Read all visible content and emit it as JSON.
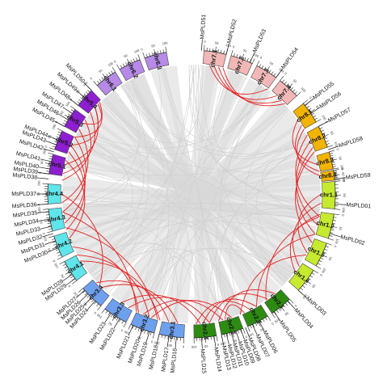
{
  "chromosomes": [
    {
      "name": "chr1.1",
      "color": "#c6ea2f"
    },
    {
      "name": "chr1.2",
      "color": "#c6ea2f"
    },
    {
      "name": "chr1.3",
      "color": "#c6ea2f"
    },
    {
      "name": "chr1.4",
      "color": "#c6ea2f"
    },
    {
      "name": "chr2.1",
      "color": "#2e8b12"
    },
    {
      "name": "chr2.2",
      "color": "#2e8b12"
    },
    {
      "name": "chr2.3",
      "color": "#2e8b12"
    },
    {
      "name": "chr2.4",
      "color": "#2e8b12"
    },
    {
      "name": "chr3.1",
      "color": "#6ea0ee"
    },
    {
      "name": "chr3.2",
      "color": "#6ea0ee"
    },
    {
      "name": "chr3.3",
      "color": "#6ea0ee"
    },
    {
      "name": "chr3.4",
      "color": "#6ea0ee"
    },
    {
      "name": "chr4.1",
      "color": "#5fe5ea"
    },
    {
      "name": "chr4.2",
      "color": "#5fe5ea"
    },
    {
      "name": "chr4.3",
      "color": "#5fe5ea"
    },
    {
      "name": "chr4.4",
      "color": "#5fe5ea"
    },
    {
      "name": "chr5.1",
      "color": "#8d1fd0"
    },
    {
      "name": "chr5.2",
      "color": "#8d1fd0"
    },
    {
      "name": "chr5.3",
      "color": "#8d1fd0"
    },
    {
      "name": "chr5.4",
      "color": "#8d1fd0"
    },
    {
      "name": "chr6.1",
      "color": "#b68ae6"
    },
    {
      "name": "chr6.2",
      "color": "#b68ae6"
    },
    {
      "name": "chr6.3",
      "color": "#b68ae6"
    },
    {
      "name": "chr6.4",
      "color": "#b68ae6"
    },
    {
      "name": "chr7.1",
      "color": "#f2b8b8"
    },
    {
      "name": "chr7.2",
      "color": "#f2b8b8"
    },
    {
      "name": "chr7.3",
      "color": "#f2b8b8"
    },
    {
      "name": "chr7.4",
      "color": "#f2b8b8"
    },
    {
      "name": "chr8.1",
      "color": "#f2b400"
    },
    {
      "name": "chr8.2",
      "color": "#f2b400"
    },
    {
      "name": "chr8.3",
      "color": "#f2b400"
    },
    {
      "name": "chr8.4",
      "color": "#f2b400"
    }
  ],
  "genes": [
    "MsPLD01",
    "MsPLD02",
    "MsPLD03",
    "MsPLD04",
    "MsPLD05",
    "MsPLD06",
    "MsPLD07",
    "MsPLD08",
    "MsPLD09",
    "MsPLD10",
    "MsPLD11",
    "MsPLD12",
    "MsPLD13",
    "MsPLD14",
    "MsPLD15",
    "MsPLD16",
    "MsPLD17",
    "MsPLD18",
    "MsPLD19",
    "MsPLD20",
    "MsPLD21",
    "MsPLD22",
    "MsPLD23",
    "MsPLD24",
    "MsPLD25",
    "MsPLD26",
    "MsPLD27",
    "MsPLD28",
    "MsPLD29",
    "MsPLD30",
    "MsPLD31",
    "MsPLD32",
    "MsPLD33",
    "MsPLD34",
    "MsPLD35",
    "MsPLD36",
    "MsPLD37",
    "MsPLD38",
    "MsPLD39",
    "MsPLD40",
    "MsPLD41",
    "MsPLD42",
    "MsPLD43",
    "MsPLD44",
    "MsPLD45",
    "MsPLD46",
    "MsPLD47",
    "MsPLD48",
    "MsPLD49",
    "MsPLD50",
    "MsPLD51",
    "MsPLD52",
    "MsPLD53",
    "MsPLD54",
    "MsPLD55",
    "MsPLD56",
    "MsPLD57",
    "MsPLD58",
    "MsPLD59"
  ],
  "tick_labels": [
    "0",
    "50",
    "100"
  ],
  "duplication_color": "#e32020",
  "collinearity_color": "#d9d9d9"
}
